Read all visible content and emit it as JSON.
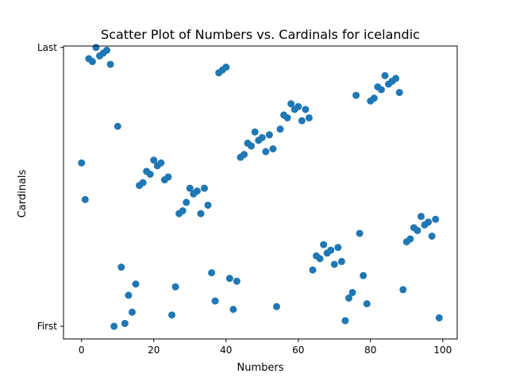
{
  "chart_data": {
    "type": "scatter",
    "title": "Scatter Plot of Numbers vs. Cardinals for icelandic",
    "xlabel": "Numbers",
    "ylabel": "Cardinals",
    "xlim": [
      -5,
      104
    ],
    "ylim": [
      -4.5,
      99.5
    ],
    "x_ticks": [
      0,
      20,
      40,
      60,
      80,
      100
    ],
    "y_ticks": [
      {
        "value": 0,
        "label": "First"
      },
      {
        "value": 99,
        "label": "Last"
      }
    ],
    "grid": false,
    "legend": "none",
    "marker_color": "#1f77b4",
    "x": [
      0,
      1,
      2,
      3,
      4,
      5,
      6,
      7,
      8,
      9,
      10,
      11,
      12,
      13,
      14,
      15,
      16,
      17,
      18,
      19,
      20,
      21,
      22,
      23,
      24,
      25,
      26,
      27,
      28,
      29,
      30,
      31,
      32,
      33,
      34,
      35,
      36,
      37,
      38,
      39,
      40,
      41,
      42,
      43,
      44,
      45,
      46,
      47,
      48,
      49,
      50,
      51,
      52,
      53,
      54,
      55,
      56,
      57,
      58,
      59,
      60,
      61,
      62,
      63,
      64,
      65,
      66,
      67,
      68,
      69,
      70,
      71,
      72,
      73,
      74,
      75,
      76,
      77,
      78,
      79,
      80,
      81,
      82,
      83,
      84,
      85,
      86,
      87,
      88,
      89,
      90,
      91,
      92,
      93,
      94,
      95,
      96,
      97,
      98,
      99
    ],
    "y": [
      58,
      45,
      95,
      94,
      99,
      96,
      97,
      98,
      93,
      0,
      71,
      21,
      1,
      11,
      5,
      15,
      50,
      51,
      55,
      54,
      59,
      57,
      58,
      52,
      53,
      4,
      14,
      40,
      41,
      44,
      49,
      47,
      48,
      40,
      49,
      43,
      19,
      9,
      90,
      91,
      92,
      17,
      6,
      16,
      60,
      61,
      65,
      64,
      69,
      66,
      67,
      62,
      68,
      63,
      7,
      70,
      75,
      74,
      79,
      77,
      78,
      73,
      77,
      74,
      20,
      25,
      24,
      29,
      26,
      27,
      22,
      28,
      23,
      2,
      10,
      12,
      82,
      33,
      18,
      8,
      80,
      81,
      85,
      84,
      89,
      86,
      87,
      88,
      83,
      13,
      30,
      31,
      35,
      34,
      39,
      36,
      37,
      32,
      38,
      3
    ]
  }
}
